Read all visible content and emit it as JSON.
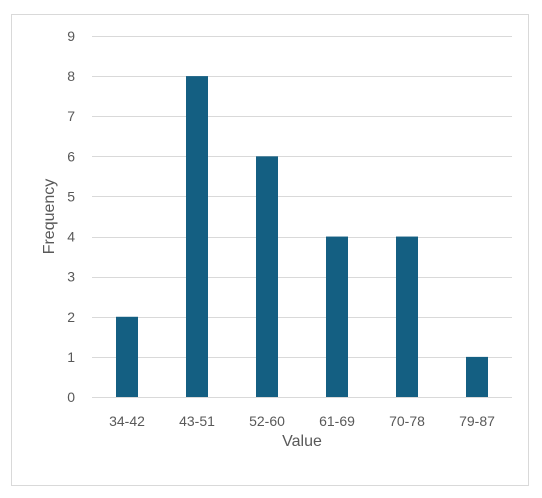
{
  "chart_data": {
    "type": "bar",
    "title": "",
    "xlabel": "Value",
    "ylabel": "Frequency",
    "categories": [
      "34-42",
      "43-51",
      "52-60",
      "61-69",
      "70-78",
      "79-87"
    ],
    "values": [
      2,
      8,
      6,
      4,
      4,
      1
    ],
    "ylim": [
      0,
      9
    ],
    "yticks": [
      "0",
      "1",
      "2",
      "3",
      "4",
      "5",
      "6",
      "7",
      "8",
      "9"
    ],
    "grid": true,
    "legend": "none",
    "bar_color": "#145f82",
    "grid_color": "#d9d9d9",
    "text_color": "#595959"
  }
}
